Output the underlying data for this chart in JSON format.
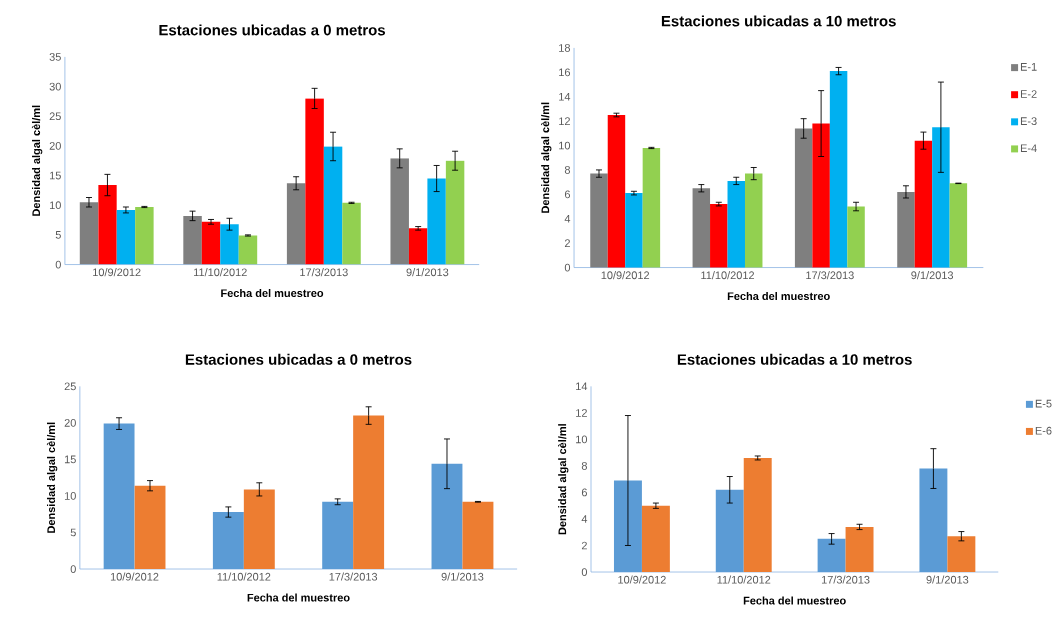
{
  "chart_data": [
    {
      "type": "bar",
      "title": "Estaciones ubicadas a 0 metros",
      "xlabel": "Fecha del muestreo",
      "ylabel": "Densidad algal cèl/ml",
      "categories": [
        "10/9/2012",
        "11/10/2012",
        "17/3/2013",
        "9/1/2013"
      ],
      "ylim": [
        0,
        35
      ],
      "yticks": [
        0,
        5,
        10,
        15,
        20,
        25,
        30,
        35
      ],
      "series": [
        {
          "color": "#7f7f7f",
          "values": [
            10.5,
            8.2,
            13.7,
            17.9
          ],
          "errors": [
            0.8,
            0.8,
            1.1,
            1.6
          ]
        },
        {
          "color": "#ff0000",
          "values": [
            13.4,
            7.2,
            28.0,
            6.1
          ],
          "errors": [
            1.8,
            0.4,
            1.7,
            0.3
          ]
        },
        {
          "color": "#00b0f0",
          "values": [
            9.2,
            6.8,
            19.9,
            14.5
          ],
          "errors": [
            0.5,
            1.0,
            2.4,
            2.2
          ]
        },
        {
          "color": "#92d050",
          "values": [
            9.7,
            4.9,
            10.4,
            17.5
          ],
          "errors": [
            0.1,
            0.1,
            0.1,
            1.6
          ]
        }
      ]
    },
    {
      "type": "bar",
      "title": "Estaciones ubicadas a 10 metros",
      "xlabel": "Fecha del muestreo",
      "ylabel": "Densidad algal cèl/ml",
      "categories": [
        "10/9/2012",
        "11/10/2012",
        "17/3/2013",
        "9/1/2013"
      ],
      "ylim": [
        0,
        18
      ],
      "yticks": [
        0,
        2,
        4,
        6,
        8,
        10,
        12,
        14,
        16,
        18
      ],
      "legend": "right",
      "series": [
        {
          "name": "E-1",
          "color": "#7f7f7f",
          "values": [
            7.7,
            6.5,
            11.4,
            6.2
          ],
          "errors": [
            0.3,
            0.3,
            0.8,
            0.5
          ]
        },
        {
          "name": "E-2",
          "color": "#ff0000",
          "values": [
            12.5,
            5.2,
            11.8,
            10.4
          ],
          "errors": [
            0.15,
            0.15,
            2.7,
            0.7
          ]
        },
        {
          "name": "E-3",
          "color": "#00b0f0",
          "values": [
            6.1,
            7.1,
            16.1,
            11.5
          ],
          "errors": [
            0.15,
            0.3,
            0.3,
            3.7
          ]
        },
        {
          "name": "E-4",
          "color": "#92d050",
          "values": [
            9.8,
            7.7,
            5.0,
            6.9
          ],
          "errors": [
            0.05,
            0.5,
            0.35,
            0.02
          ]
        }
      ]
    },
    {
      "type": "bar",
      "title": "Estaciones ubicadas a 0 metros",
      "xlabel": "Fecha del muestreo",
      "ylabel": "Densidad algal cèl/ml",
      "categories": [
        "10/9/2012",
        "11/10/2012",
        "17/3/2013",
        "9/1/2013"
      ],
      "ylim": [
        0,
        25
      ],
      "yticks": [
        0,
        5,
        10,
        15,
        20,
        25
      ],
      "series": [
        {
          "color": "#5b9bd5",
          "values": [
            19.9,
            7.8,
            9.2,
            14.4
          ],
          "errors": [
            0.8,
            0.7,
            0.4,
            3.4
          ]
        },
        {
          "color": "#ed7d31",
          "values": [
            11.4,
            10.9,
            21.0,
            9.2
          ],
          "errors": [
            0.7,
            0.9,
            1.2,
            0.05
          ]
        }
      ]
    },
    {
      "type": "bar",
      "title": "Estaciones ubicadas a 10 metros",
      "xlabel": "Fecha del muestreo",
      "ylabel": "Densidad algal cèl/ml",
      "categories": [
        "10/9/2012",
        "11/10/2012",
        "17/3/2013",
        "9/1/2013"
      ],
      "ylim": [
        0,
        14
      ],
      "yticks": [
        0,
        2,
        4,
        6,
        8,
        10,
        12,
        14
      ],
      "legend": "right",
      "series": [
        {
          "name": "E-5",
          "color": "#5b9bd5",
          "values": [
            6.9,
            6.2,
            2.5,
            7.8
          ],
          "errors": [
            4.9,
            1.0,
            0.4,
            1.5
          ]
        },
        {
          "name": "E-6",
          "color": "#ed7d31",
          "values": [
            5.0,
            8.6,
            3.4,
            2.7
          ],
          "errors": [
            0.2,
            0.15,
            0.2,
            0.35
          ]
        }
      ]
    }
  ]
}
